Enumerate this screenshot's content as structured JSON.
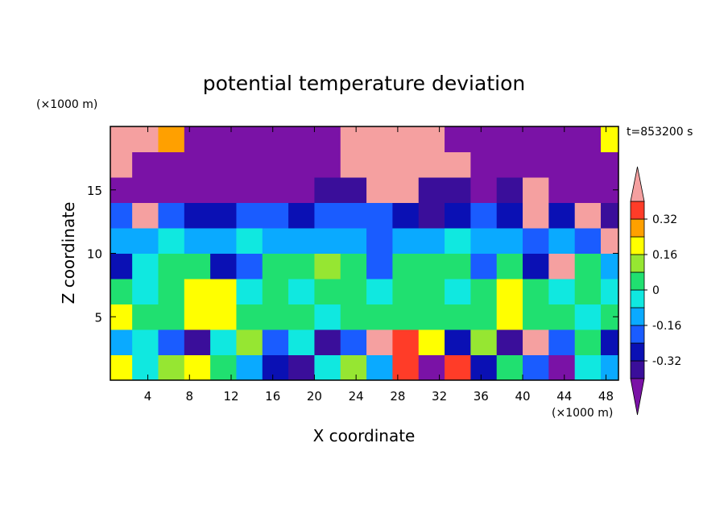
{
  "chart_data": {
    "type": "contour",
    "title": "potential temperature deviation",
    "x_label": "X coordinate",
    "y_label": "Z coordinate",
    "x_unit": "(×1000 m)",
    "y_unit": "(×1000 m)",
    "annotation": "t=853200 s",
    "xlim": [
      0.4,
      49.2
    ],
    "ylim": [
      0,
      20
    ],
    "xticks": [
      4,
      8,
      12,
      16,
      20,
      24,
      28,
      32,
      36,
      40,
      44,
      48
    ],
    "yticks": [
      5,
      10,
      15
    ],
    "x_edges": [
      0,
      2.5,
      5,
      7.5,
      10,
      12.5,
      15,
      17.5,
      20,
      22.5,
      25,
      27.5,
      30,
      32.5,
      35,
      37.5,
      40,
      42.5,
      45,
      47.5,
      50
    ],
    "y_edges": [
      0,
      2,
      4,
      6,
      8,
      10,
      12,
      14,
      16,
      18,
      20
    ],
    "z": [
      [
        0.2,
        -0.04,
        0.1,
        0.2,
        0.04,
        -0.12,
        -0.28,
        -0.36,
        -0.04,
        0.1,
        -0.12,
        0.36,
        -0.45,
        0.36,
        -0.28,
        0.04,
        -0.2,
        -0.45,
        -0.04,
        -0.12
      ],
      [
        -0.12,
        -0.04,
        -0.2,
        -0.36,
        -0.04,
        0.1,
        -0.2,
        -0.04,
        -0.36,
        -0.2,
        0.45,
        0.36,
        0.2,
        -0.28,
        0.1,
        -0.36,
        0.45,
        -0.2,
        0.04,
        -0.28
      ],
      [
        0.2,
        0.04,
        0.04,
        0.2,
        0.2,
        0.04,
        0.04,
        0.04,
        -0.04,
        0.04,
        0.04,
        0.04,
        0.04,
        0.04,
        0.04,
        0.2,
        0.04,
        0.04,
        -0.04,
        0.04
      ],
      [
        0.04,
        -0.04,
        0.04,
        0.2,
        0.2,
        -0.04,
        0.04,
        -0.04,
        0.04,
        0.04,
        -0.04,
        0.04,
        0.04,
        -0.04,
        0.04,
        0.2,
        0.04,
        -0.04,
        0.04,
        -0.04
      ],
      [
        -0.28,
        -0.04,
        0.04,
        0.04,
        -0.28,
        -0.2,
        0.04,
        0.04,
        0.1,
        0.04,
        -0.2,
        0.04,
        0.04,
        0.04,
        -0.2,
        0.04,
        -0.28,
        0.45,
        0.04,
        -0.1
      ],
      [
        -0.1,
        -0.12,
        -0.04,
        -0.1,
        -0.12,
        -0.04,
        -0.1,
        -0.12,
        -0.1,
        -0.12,
        -0.2,
        -0.1,
        -0.1,
        -0.04,
        -0.1,
        -0.12,
        -0.2,
        -0.12,
        -0.2,
        0.45
      ],
      [
        -0.2,
        0.45,
        -0.2,
        -0.28,
        -0.28,
        -0.2,
        -0.2,
        -0.28,
        -0.2,
        -0.2,
        -0.2,
        -0.28,
        -0.36,
        -0.28,
        -0.2,
        -0.28,
        0.45,
        -0.28,
        0.45,
        -0.36
      ],
      [
        -0.45,
        -0.45,
        -0.45,
        -0.45,
        -0.45,
        -0.45,
        -0.45,
        -0.45,
        -0.36,
        -0.36,
        0.45,
        0.45,
        -0.36,
        -0.36,
        -0.45,
        -0.36,
        0.45,
        -0.45,
        -0.45,
        -0.45
      ],
      [
        0.45,
        -0.45,
        -0.45,
        -0.45,
        -0.45,
        -0.45,
        -0.45,
        -0.45,
        -0.45,
        0.45,
        0.45,
        0.45,
        0.45,
        0.45,
        -0.45,
        -0.45,
        -0.45,
        -0.45,
        -0.45,
        -0.45
      ],
      [
        0.45,
        0.45,
        0.3,
        -0.45,
        -0.45,
        -0.45,
        -0.45,
        -0.45,
        -0.45,
        0.45,
        0.45,
        0.45,
        0.45,
        -0.45,
        -0.45,
        -0.45,
        -0.45,
        -0.45,
        -0.45,
        0.2
      ]
    ],
    "colorbar": {
      "levels": [
        -0.4,
        -0.32,
        -0.24,
        -0.16,
        -0.08,
        0,
        0.08,
        0.16,
        0.24,
        0.32,
        0.4
      ],
      "colors": [
        "#7a12a6",
        "#3a0e9a",
        "#0a10b4",
        "#1a5cff",
        "#0aaaff",
        "#10e8e0",
        "#20e070",
        "#96e632",
        "#ffff00",
        "#ffa000",
        "#ff3c28",
        "#f5a0a0"
      ],
      "ticks": [
        -0.32,
        -0.16,
        0,
        0.16,
        0.32
      ]
    }
  }
}
